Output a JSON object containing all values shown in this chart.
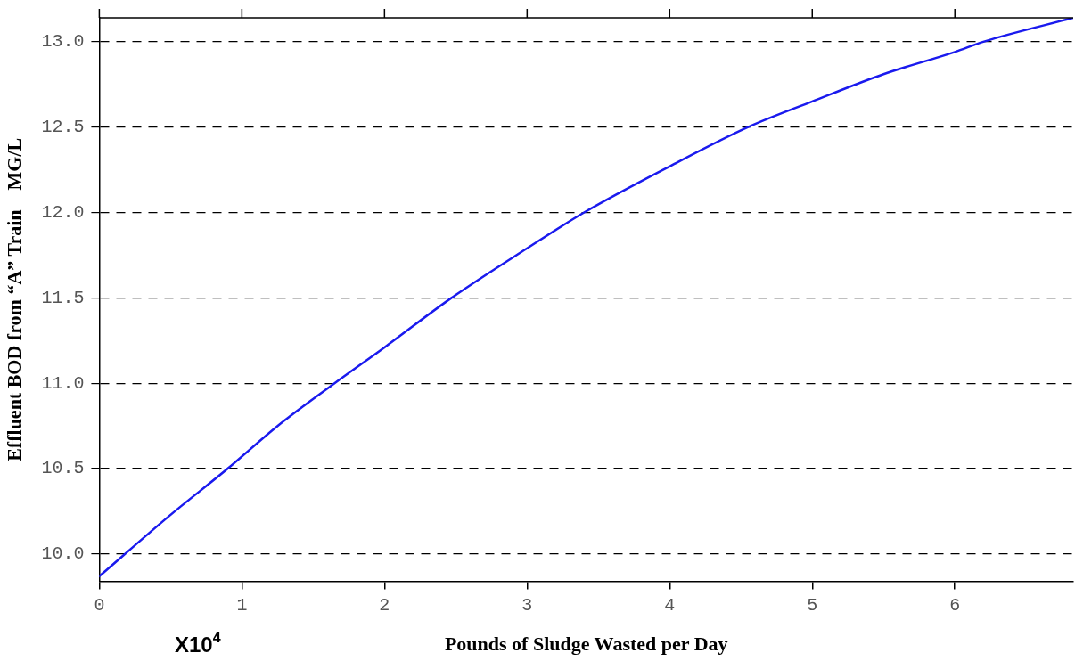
{
  "chart_data": {
    "type": "line",
    "xlabel": "Pounds of Sludge Wasted per Day",
    "ylabel": "Effluent BOD from “A” Train    MG/L",
    "annotations": [
      "X10$^{4}$"
    ],
    "x": [
      0,
      0.5,
      0.9,
      1.25,
      1.65,
      2.0,
      2.47,
      3.0,
      3.4,
      4.0,
      4.55,
      5.0,
      5.5,
      6.0,
      6.2,
      6.83
    ],
    "series": [
      {
        "color": "#1a1aee",
        "values": [
          9.87,
          10.23,
          10.5,
          10.75,
          11.0,
          11.21,
          11.5,
          11.79,
          12.0,
          12.27,
          12.5,
          12.65,
          12.81,
          12.94,
          13.0,
          13.14
        ]
      }
    ],
    "xlim": [
      0,
      6.83
    ],
    "xticks": [
      0,
      1,
      2,
      3,
      4,
      5,
      6
    ],
    "ylim": [
      9.84,
      13.14
    ],
    "yticks": [
      {
        "value": 10,
        "label": "10.0"
      },
      {
        "value": 10.5,
        "label": "10.5"
      },
      {
        "value": 11,
        "label": "11.0"
      },
      {
        "value": 11.5,
        "label": "11.5"
      },
      {
        "value": 12,
        "label": "12.0"
      },
      {
        "value": 12.5,
        "label": "12.5"
      },
      {
        "value": 13,
        "label": "13.0"
      }
    ],
    "grid": "y",
    "legend": false,
    "marker": "none",
    "line_style": "solid"
  }
}
